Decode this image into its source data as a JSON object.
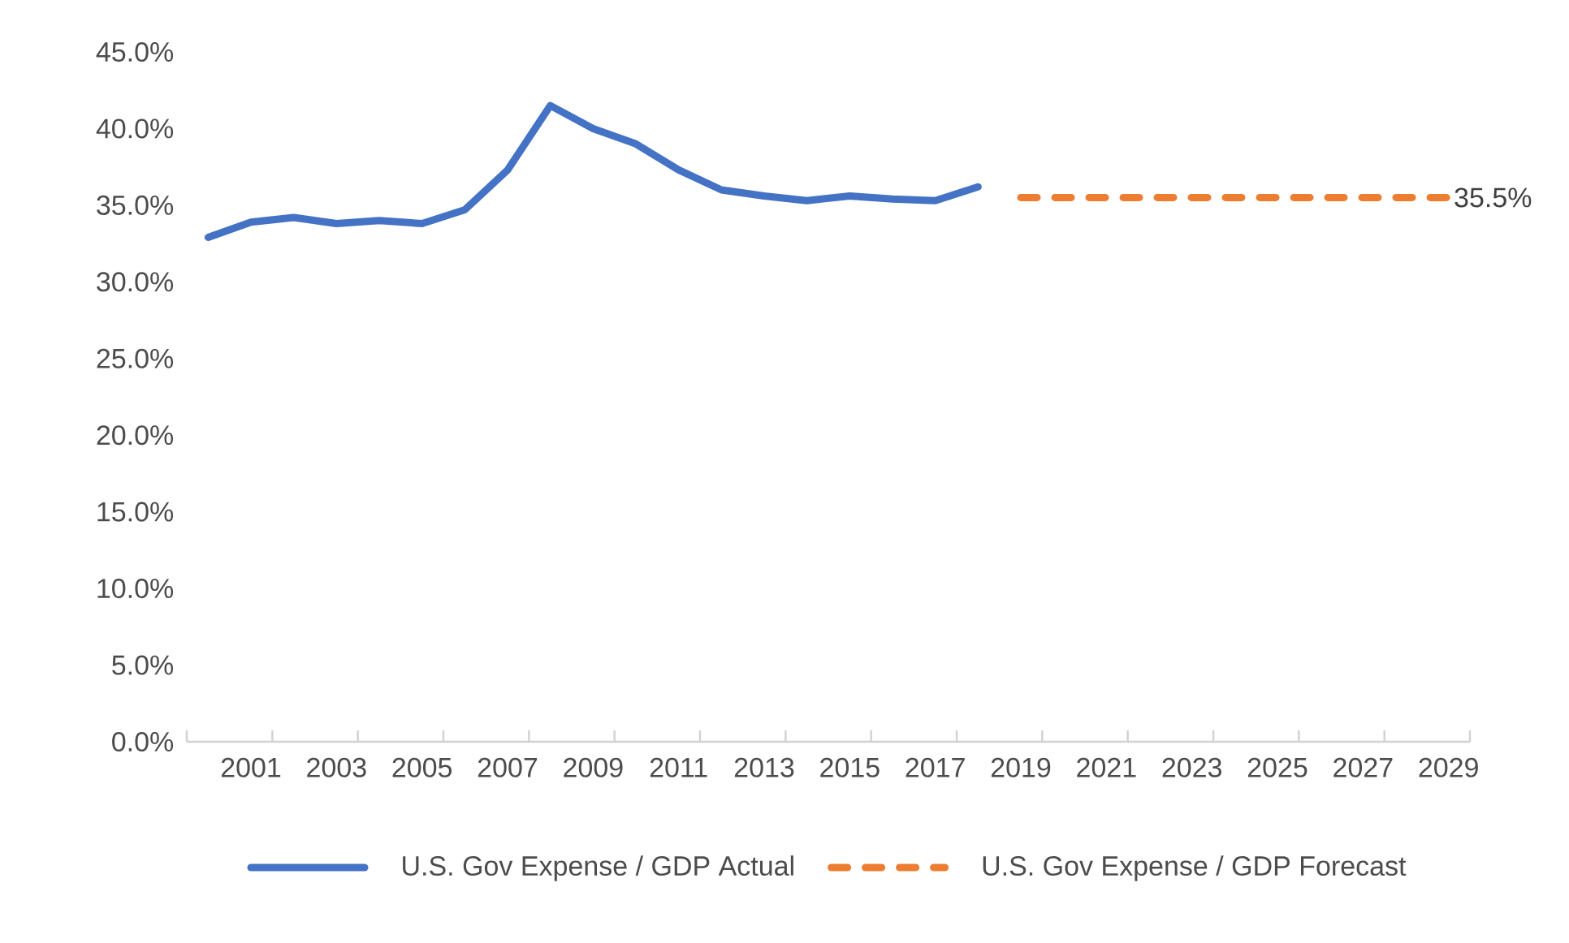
{
  "chart_data": {
    "type": "line",
    "categories": [
      null,
      "2001",
      null,
      "2003",
      null,
      "2005",
      null,
      "2007",
      null,
      "2009",
      null,
      "2011",
      null,
      "2013",
      null,
      "2015",
      null,
      "2017",
      null,
      "2019",
      null,
      "2021",
      null,
      "2023",
      null,
      "2025",
      null,
      "2027",
      null,
      "2029"
    ],
    "series": [
      {
        "name": "U.S. Gov Expense / GDP Actual",
        "color": "#4472c4",
        "line_style": "solid",
        "values": [
          32.9,
          33.9,
          34.2,
          33.8,
          34.0,
          33.8,
          34.7,
          37.3,
          41.5,
          40.0,
          39.0,
          37.3,
          36.0,
          35.6,
          35.3,
          35.6,
          35.4,
          35.3,
          36.2,
          null,
          null,
          null,
          null,
          null,
          null,
          null,
          null,
          null,
          null,
          null
        ]
      },
      {
        "name": "U.S. Gov Expense / GDP Forecast",
        "color": "#ed7d31",
        "line_style": "dashed",
        "values": [
          null,
          null,
          null,
          null,
          null,
          null,
          null,
          null,
          null,
          null,
          null,
          null,
          null,
          null,
          null,
          null,
          null,
          null,
          null,
          35.5,
          35.5,
          35.5,
          35.5,
          35.5,
          35.5,
          35.5,
          35.5,
          35.5,
          35.5,
          35.5
        ],
        "value_labels": [
          null,
          null,
          null,
          null,
          null,
          null,
          null,
          null,
          null,
          null,
          null,
          null,
          null,
          null,
          null,
          null,
          null,
          null,
          null,
          null,
          null,
          null,
          null,
          null,
          null,
          null,
          null,
          null,
          null,
          "35.5%"
        ]
      }
    ],
    "ylim": [
      0,
      45
    ],
    "yticks": [
      {
        "value": 0,
        "label": "0.0%"
      },
      {
        "value": 5,
        "label": "5.0%"
      },
      {
        "value": 10,
        "label": "10.0%"
      },
      {
        "value": 15,
        "label": "15.0%"
      },
      {
        "value": 20,
        "label": "20.0%"
      },
      {
        "value": 25,
        "label": "25.0%"
      },
      {
        "value": 30,
        "label": "30.0%"
      },
      {
        "value": 35,
        "label": "35.0%"
      },
      {
        "value": 40,
        "label": "40.0%"
      },
      {
        "value": 45,
        "label": "45.0%"
      }
    ],
    "grid": false,
    "legend": "bottom"
  }
}
